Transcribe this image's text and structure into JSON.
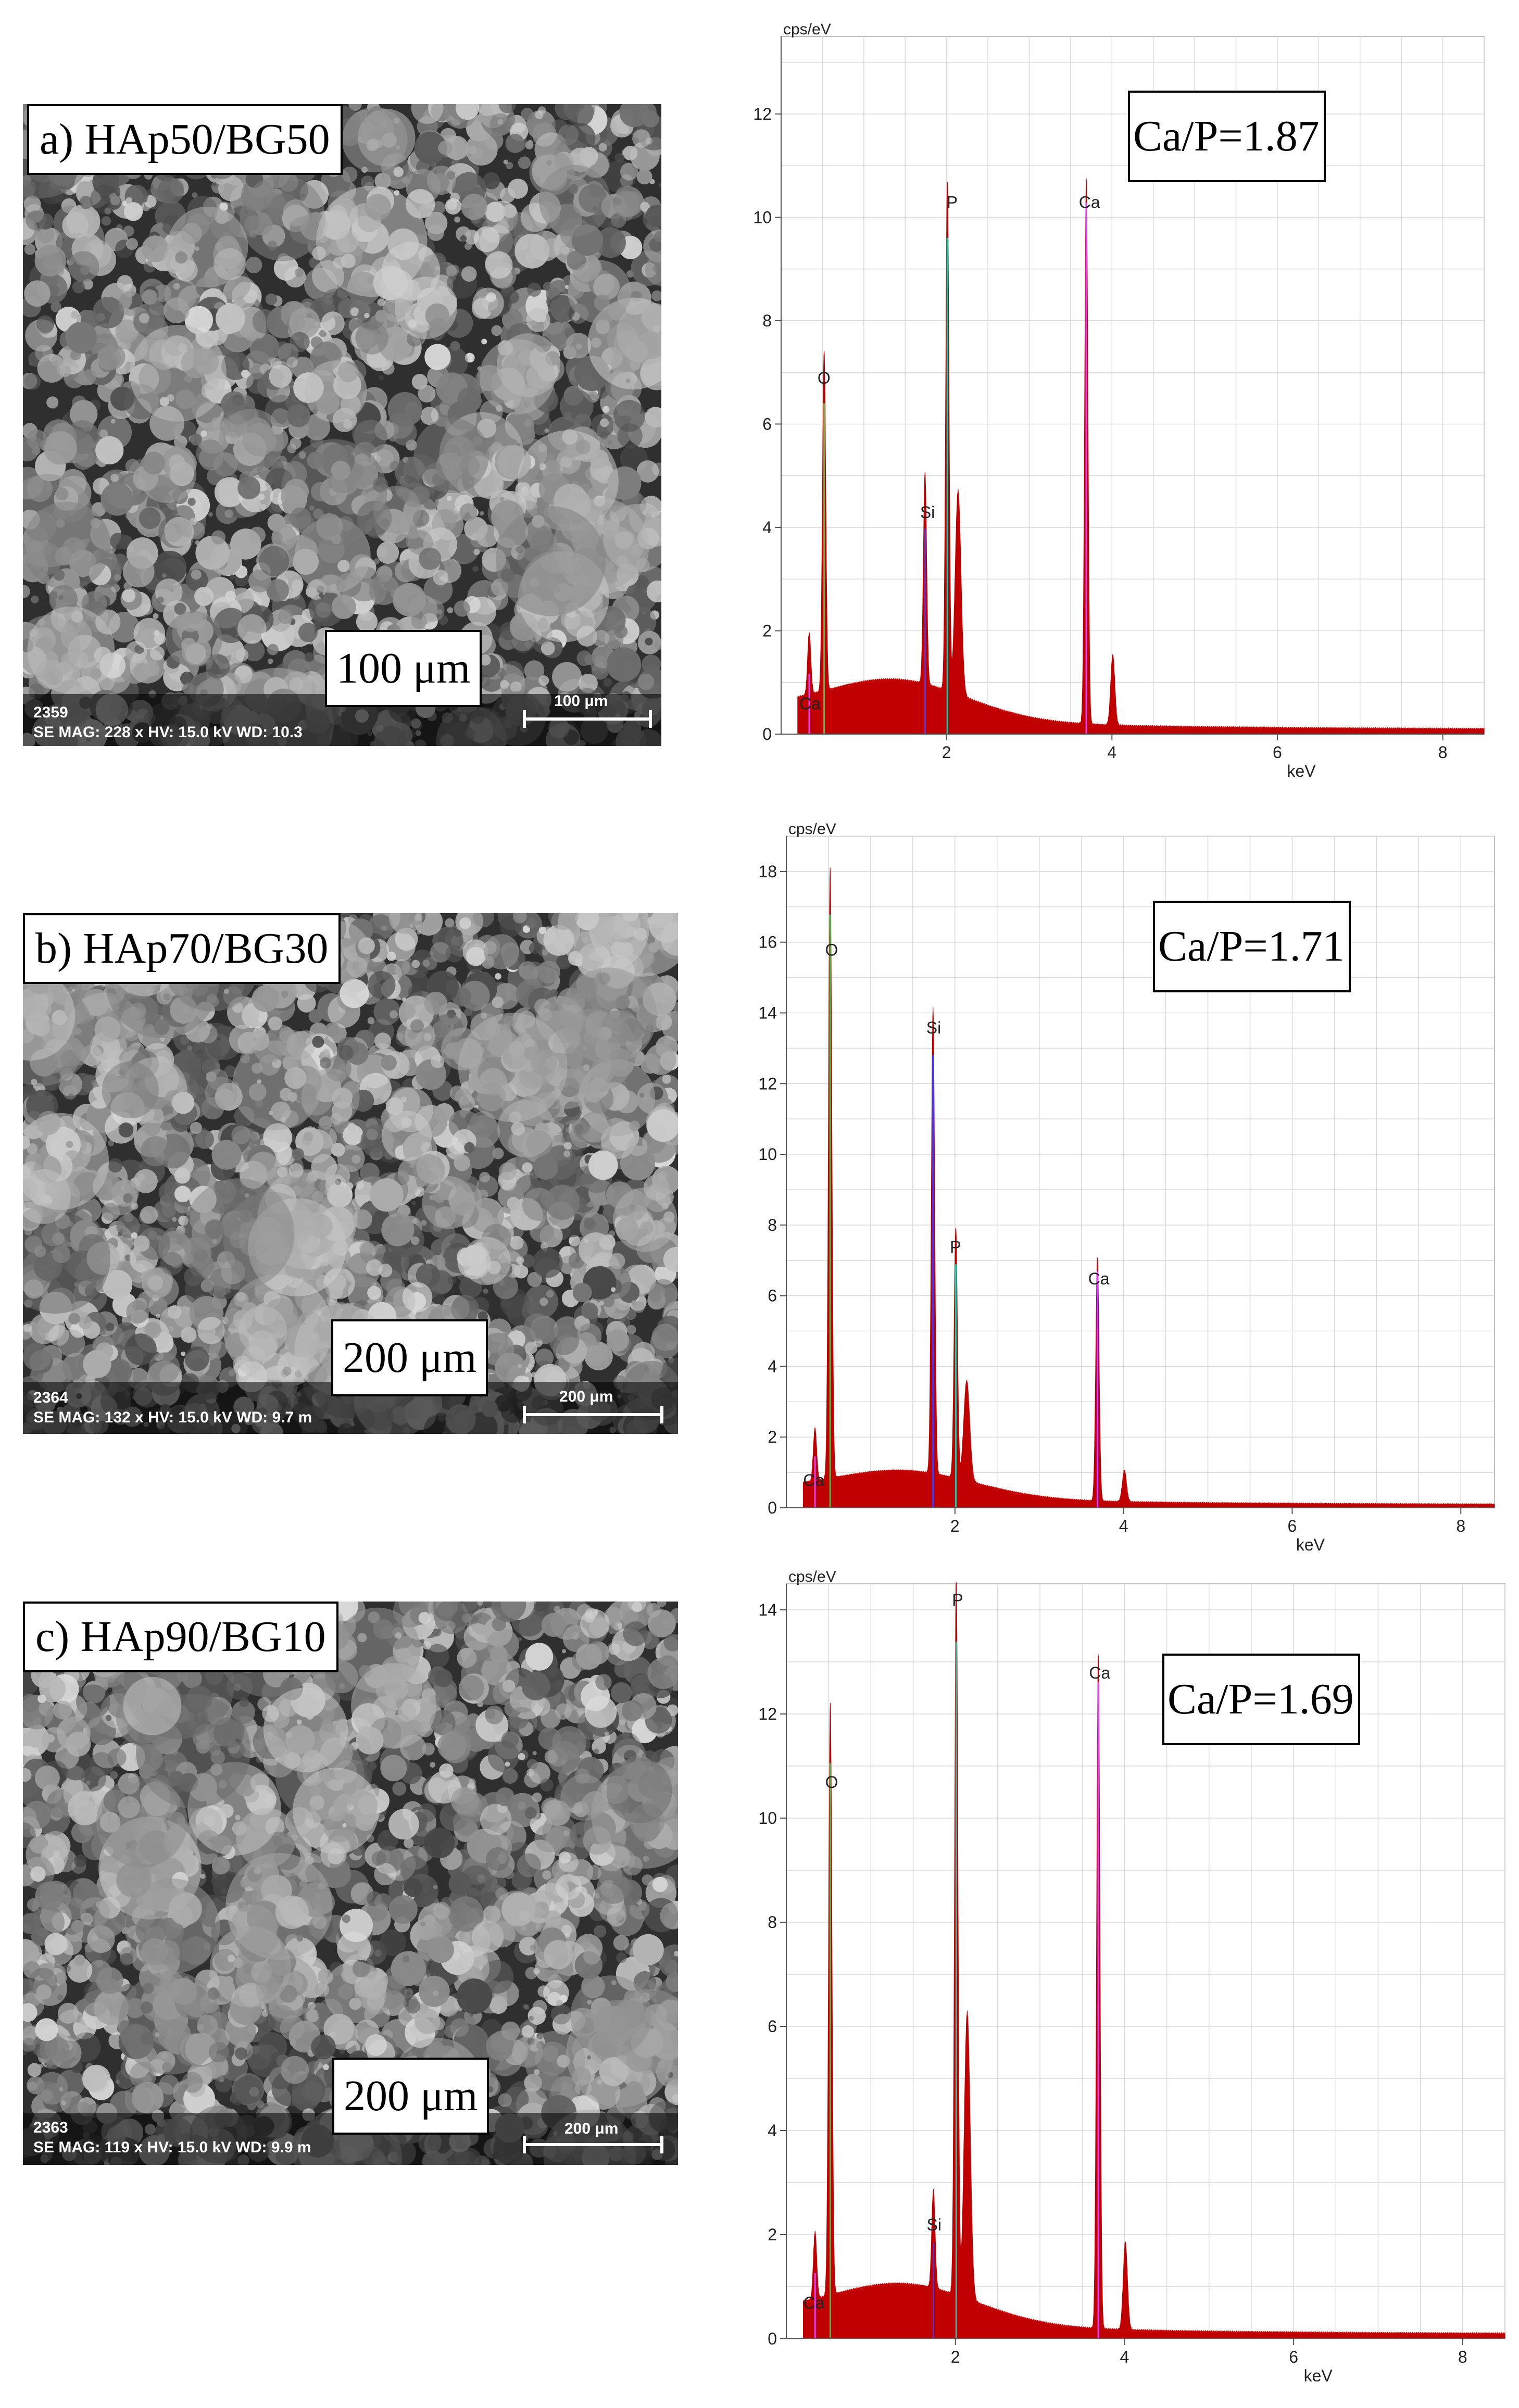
{
  "panels": [
    {
      "id": "a",
      "sem": {
        "label": "a) HAp50/BG50",
        "scale_label": "100 μm",
        "info_id": "2359",
        "info_text": "SE  MAG: 228 x  HV: 15.0 kV  WD: 10.3",
        "bar_text": "100 μm"
      },
      "ratio": "Ca/P=1.87"
    },
    {
      "id": "b",
      "sem": {
        "label": "b) HAp70/BG30",
        "scale_label": "200 μm",
        "info_id": "2364",
        "info_text": "SE  MAG: 132 x  HV: 15.0 kV  WD: 9.7 m",
        "bar_text": "200 μm"
      },
      "ratio": "Ca/P=1.71"
    },
    {
      "id": "c",
      "sem": {
        "label": "c) HAp90/BG10",
        "scale_label": "200 μm",
        "info_id": "2363",
        "info_text": "SE  MAG: 119 x  HV: 15.0 kV  WD: 9.9 m",
        "bar_text": "200 μm"
      },
      "ratio": "Ca/P=1.69"
    }
  ],
  "chart_data": [
    {
      "type": "line",
      "xlabel": "keV",
      "ylabel": "cps/eV",
      "xlim": [
        0,
        8.5
      ],
      "ylim": [
        0,
        13.5
      ],
      "xticks": [
        2,
        4,
        6,
        8
      ],
      "yticks": [
        0,
        2,
        4,
        6,
        8,
        10,
        12
      ],
      "peaks": [
        {
          "element": "Ca",
          "x": 0.34,
          "y": 1.2
        },
        {
          "element": "O",
          "x": 0.52,
          "y": 6.6
        },
        {
          "element": "Si",
          "x": 1.74,
          "y": 4.1
        },
        {
          "element": "P",
          "x": 2.01,
          "y": 9.9
        },
        {
          "element": "Ca",
          "x": 3.69,
          "y": 10.6
        }
      ],
      "labels": [
        {
          "text": "Ca",
          "x": 0.22,
          "y": 0.4
        },
        {
          "text": "O",
          "x": 0.44,
          "y": 6.7
        },
        {
          "text": "Si",
          "x": 1.68,
          "y": 4.1
        },
        {
          "text": "P",
          "x": 2.0,
          "y": 10.1
        },
        {
          "text": "Ca",
          "x": 3.6,
          "y": 10.1
        }
      ],
      "colors": {
        "spectrum": "#c00000",
        "grid": "#d9d9d9"
      }
    },
    {
      "type": "line",
      "xlabel": "keV",
      "ylabel": "cps/eV",
      "xlim": [
        0,
        8.4
      ],
      "ylim": [
        0,
        19
      ],
      "xticks": [
        2,
        4,
        6,
        8
      ],
      "yticks": [
        0,
        2,
        4,
        6,
        8,
        10,
        12,
        14,
        16,
        18
      ],
      "peaks": [
        {
          "element": "Ca",
          "x": 0.34,
          "y": 1.5
        },
        {
          "element": "O",
          "x": 0.52,
          "y": 17.3
        },
        {
          "element": "Si",
          "x": 1.74,
          "y": 13.2
        },
        {
          "element": "P",
          "x": 2.01,
          "y": 7.1
        },
        {
          "element": "Ca",
          "x": 3.69,
          "y": 6.9
        }
      ],
      "labels": [
        {
          "text": "Ca",
          "x": 0.2,
          "y": 0.5
        },
        {
          "text": "O",
          "x": 0.46,
          "y": 15.5
        },
        {
          "text": "Si",
          "x": 1.66,
          "y": 13.3
        },
        {
          "text": "P",
          "x": 1.94,
          "y": 7.1
        },
        {
          "text": "Ca",
          "x": 3.58,
          "y": 6.2
        }
      ],
      "colors": {
        "spectrum": "#c00000",
        "grid": "#d9d9d9"
      }
    },
    {
      "type": "line",
      "xlabel": "keV",
      "ylabel": "cps/eV",
      "xlim": [
        0,
        8.5
      ],
      "ylim": [
        0,
        14.5
      ],
      "xticks": [
        2,
        4,
        6,
        8
      ],
      "yticks": [
        0,
        2,
        4,
        6,
        8,
        10,
        12,
        14
      ],
      "peaks": [
        {
          "element": "Ca",
          "x": 0.34,
          "y": 1.3
        },
        {
          "element": "O",
          "x": 0.52,
          "y": 11.4
        },
        {
          "element": "Si",
          "x": 1.74,
          "y": 1.9
        },
        {
          "element": "P",
          "x": 2.01,
          "y": 13.8
        },
        {
          "element": "Ca",
          "x": 3.69,
          "y": 13.0
        }
      ],
      "labels": [
        {
          "text": "Ca",
          "x": 0.2,
          "y": 0.5
        },
        {
          "text": "O",
          "x": 0.46,
          "y": 10.5
        },
        {
          "text": "Si",
          "x": 1.66,
          "y": 2.0
        },
        {
          "text": "P",
          "x": 1.96,
          "y": 14.0
        },
        {
          "text": "Ca",
          "x": 3.58,
          "y": 12.6
        }
      ],
      "colors": {
        "spectrum": "#c00000",
        "grid": "#d9d9d9"
      }
    }
  ]
}
